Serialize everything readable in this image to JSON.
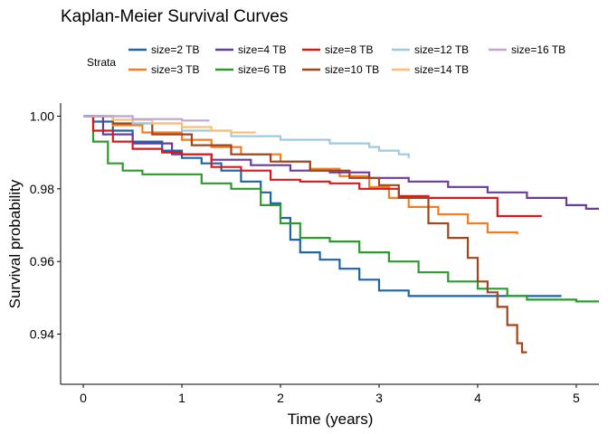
{
  "chart_data": {
    "type": "line",
    "title": "Kaplan-Meier Survival Curves",
    "xlabel": "Time (years)",
    "ylabel": "Survival probability",
    "xlim": [
      -0.23,
      5.23
    ],
    "ylim": [
      0.9262,
      1.0036
    ],
    "xticks": [
      0,
      1,
      2,
      3,
      4,
      5
    ],
    "xtick_labels": [
      "0",
      "1",
      "2",
      "3",
      "4",
      "5"
    ],
    "yticks": [
      0.94,
      0.96,
      0.98,
      1.0
    ],
    "ytick_labels": [
      "0.94",
      "0.96",
      "0.98",
      "1.00"
    ],
    "grid": false,
    "legend": {
      "title": "Strata",
      "placement": "top"
    },
    "series": [
      {
        "name": "size=2 TB",
        "color": "#1f64a8",
        "values": [
          [
            0,
            1.0
          ],
          [
            0.1,
            0.9985
          ],
          [
            0.3,
            0.996
          ],
          [
            0.5,
            0.993
          ],
          [
            0.8,
            0.9905
          ],
          [
            1.0,
            0.9885
          ],
          [
            1.2,
            0.987
          ],
          [
            1.4,
            0.985
          ],
          [
            1.6,
            0.982
          ],
          [
            1.8,
            0.979
          ],
          [
            1.9,
            0.976
          ],
          [
            2.0,
            0.972
          ],
          [
            2.1,
            0.966
          ],
          [
            2.2,
            0.9625
          ],
          [
            2.4,
            0.9605
          ],
          [
            2.6,
            0.958
          ],
          [
            2.8,
            0.955
          ],
          [
            3.0,
            0.952
          ],
          [
            3.3,
            0.9505
          ],
          [
            4.0,
            0.9505
          ],
          [
            4.85,
            0.9505
          ]
        ]
      },
      {
        "name": "size=3 TB",
        "color": "#f47d20",
        "values": [
          [
            0,
            1.0
          ],
          [
            0.3,
            0.9975
          ],
          [
            0.6,
            0.9955
          ],
          [
            1.0,
            0.9935
          ],
          [
            1.3,
            0.9915
          ],
          [
            1.6,
            0.9895
          ],
          [
            2.0,
            0.9875
          ],
          [
            2.3,
            0.9855
          ],
          [
            2.6,
            0.9835
          ],
          [
            2.9,
            0.9805
          ],
          [
            3.1,
            0.9775
          ],
          [
            3.3,
            0.975
          ],
          [
            3.6,
            0.973
          ],
          [
            3.9,
            0.9705
          ],
          [
            4.1,
            0.968
          ],
          [
            4.4,
            0.9675
          ]
        ]
      },
      {
        "name": "size=4 TB",
        "color": "#6b3a9b",
        "values": [
          [
            0,
            1.0
          ],
          [
            0.2,
            0.995
          ],
          [
            0.5,
            0.9925
          ],
          [
            0.9,
            0.9895
          ],
          [
            1.3,
            0.988
          ],
          [
            1.7,
            0.9865
          ],
          [
            2.1,
            0.985
          ],
          [
            2.5,
            0.9845
          ],
          [
            2.9,
            0.983
          ],
          [
            3.3,
            0.982
          ],
          [
            3.7,
            0.9805
          ],
          [
            4.1,
            0.979
          ],
          [
            4.5,
            0.9775
          ],
          [
            4.9,
            0.9755
          ],
          [
            5.1,
            0.9745
          ],
          [
            5.25,
            0.9735
          ]
        ]
      },
      {
        "name": "size=6 TB",
        "color": "#2e9a2e",
        "values": [
          [
            0,
            1.0
          ],
          [
            0.1,
            0.993
          ],
          [
            0.25,
            0.987
          ],
          [
            0.4,
            0.985
          ],
          [
            0.6,
            0.984
          ],
          [
            1.0,
            0.984
          ],
          [
            1.2,
            0.9815
          ],
          [
            1.5,
            0.98
          ],
          [
            1.8,
            0.9755
          ],
          [
            2.0,
            0.9705
          ],
          [
            2.2,
            0.9665
          ],
          [
            2.5,
            0.9655
          ],
          [
            2.8,
            0.9625
          ],
          [
            3.1,
            0.96
          ],
          [
            3.4,
            0.957
          ],
          [
            3.7,
            0.9545
          ],
          [
            4.0,
            0.9525
          ],
          [
            4.3,
            0.9505
          ],
          [
            4.5,
            0.9495
          ],
          [
            5.0,
            0.949
          ],
          [
            5.25,
            0.949
          ]
        ]
      },
      {
        "name": "size=8 TB",
        "color": "#d7191c",
        "values": [
          [
            0,
            1.0
          ],
          [
            0.1,
            0.996
          ],
          [
            0.3,
            0.993
          ],
          [
            0.5,
            0.991
          ],
          [
            0.8,
            0.99
          ],
          [
            1.0,
            0.9895
          ],
          [
            1.3,
            0.986
          ],
          [
            1.6,
            0.985
          ],
          [
            1.9,
            0.9825
          ],
          [
            2.2,
            0.982
          ],
          [
            2.5,
            0.9815
          ],
          [
            2.8,
            0.98
          ],
          [
            3.2,
            0.978
          ],
          [
            3.5,
            0.9775
          ],
          [
            4.0,
            0.9775
          ],
          [
            4.2,
            0.9725
          ],
          [
            4.65,
            0.9725
          ]
        ]
      },
      {
        "name": "size=10 TB",
        "color": "#a0451d",
        "values": [
          [
            0,
            1.0
          ],
          [
            0.3,
            0.998
          ],
          [
            0.7,
            0.995
          ],
          [
            1.1,
            0.992
          ],
          [
            1.5,
            0.9895
          ],
          [
            1.9,
            0.9875
          ],
          [
            2.3,
            0.985
          ],
          [
            2.7,
            0.983
          ],
          [
            3.0,
            0.981
          ],
          [
            3.2,
            0.9775
          ],
          [
            3.5,
            0.9705
          ],
          [
            3.7,
            0.9665
          ],
          [
            3.9,
            0.961
          ],
          [
            4.0,
            0.9545
          ],
          [
            4.1,
            0.9515
          ],
          [
            4.2,
            0.9475
          ],
          [
            4.3,
            0.9425
          ],
          [
            4.4,
            0.9375
          ],
          [
            4.45,
            0.935
          ],
          [
            4.5,
            0.935
          ]
        ]
      },
      {
        "name": "size=12 TB",
        "color": "#9ecae1",
        "values": [
          [
            0,
            1.0
          ],
          [
            0.5,
            0.998
          ],
          [
            1.0,
            0.996
          ],
          [
            1.5,
            0.9945
          ],
          [
            2.0,
            0.9935
          ],
          [
            2.5,
            0.9925
          ],
          [
            2.9,
            0.9915
          ],
          [
            3.0,
            0.9905
          ],
          [
            3.2,
            0.9895
          ],
          [
            3.3,
            0.9885
          ]
        ]
      },
      {
        "name": "size=14 TB",
        "color": "#fdbf6f",
        "values": [
          [
            0,
            1.0
          ],
          [
            0.3,
            0.999
          ],
          [
            0.7,
            0.998
          ],
          [
            1.0,
            0.997
          ],
          [
            1.3,
            0.996
          ],
          [
            1.5,
            0.9955
          ],
          [
            1.75,
            0.9955
          ]
        ]
      },
      {
        "name": "size=16 TB",
        "color": "#c2a5cf",
        "values": [
          [
            0,
            1.0
          ],
          [
            0.5,
            0.9992
          ],
          [
            1.0,
            0.9988
          ],
          [
            1.28,
            0.9988
          ]
        ]
      }
    ]
  }
}
